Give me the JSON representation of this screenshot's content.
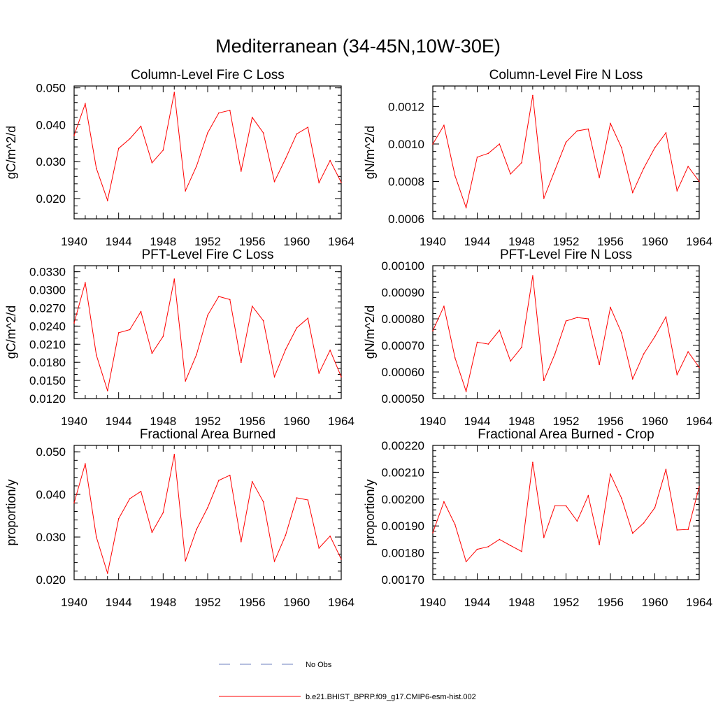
{
  "figure": {
    "title": "Mediterranean (34-45N,10W-30E)"
  },
  "legend": [
    {
      "label": "No Obs",
      "color": "#6d7fbf",
      "style": "dashed"
    },
    {
      "label": "b.e21.BHIST_BPRP.f09_g17.CMIP6-esm-hist.002",
      "color": "#ff0000",
      "style": "solid"
    }
  ],
  "chart_data": [
    {
      "type": "line",
      "title": "Column-Level Fire C Loss",
      "xlabel": "",
      "ylabel": "gC/m^2/d",
      "xlim": [
        1940,
        1964
      ],
      "ylim": [
        0.0145,
        0.0505
      ],
      "x_ticks": [
        1940,
        1944,
        1948,
        1952,
        1956,
        1960,
        1964
      ],
      "y_ticks": [
        0.02,
        0.03,
        0.04,
        0.05
      ],
      "y_tick_labels": [
        "0.020",
        "0.030",
        "0.040",
        "0.050"
      ],
      "y_minor_step": 0.002,
      "x": [
        1940,
        1941,
        1942,
        1943,
        1944,
        1945,
        1946,
        1947,
        1948,
        1949,
        1950,
        1951,
        1952,
        1953,
        1954,
        1955,
        1956,
        1957,
        1958,
        1959,
        1960,
        1961,
        1962,
        1963,
        1964
      ],
      "series": [
        {
          "name": "b.e21.BHIST_BPRP.f09_g17.CMIP6-esm-hist.002",
          "color": "#ff0000",
          "values": [
            0.0371,
            0.0457,
            0.0282,
            0.0195,
            0.0336,
            0.0362,
            0.0396,
            0.0297,
            0.0331,
            0.0488,
            0.0221,
            0.0288,
            0.0378,
            0.0432,
            0.0439,
            0.0274,
            0.042,
            0.0378,
            0.0246,
            0.0308,
            0.0375,
            0.0393,
            0.0243,
            0.0303,
            0.0244
          ]
        }
      ]
    },
    {
      "type": "line",
      "title": "Column-Level Fire N Loss",
      "xlabel": "",
      "ylabel": "gN/m^2/d",
      "xlim": [
        1940,
        1964
      ],
      "ylim": [
        0.0006,
        0.00131
      ],
      "x_ticks": [
        1940,
        1944,
        1948,
        1952,
        1956,
        1960,
        1964
      ],
      "y_ticks": [
        0.0006,
        0.0008,
        0.001,
        0.0012
      ],
      "y_tick_labels": [
        "0.0006",
        "0.0008",
        "0.0010",
        "0.0012"
      ],
      "y_minor_step": 4e-05,
      "x": [
        1940,
        1941,
        1942,
        1943,
        1944,
        1945,
        1946,
        1947,
        1948,
        1949,
        1950,
        1951,
        1952,
        1953,
        1954,
        1955,
        1956,
        1957,
        1958,
        1959,
        1960,
        1961,
        1962,
        1963,
        1964
      ],
      "series": [
        {
          "name": "b.e21.BHIST_BPRP.f09_g17.CMIP6-esm-hist.002",
          "color": "#ff0000",
          "values": [
            0.001,
            0.0011,
            0.00083,
            0.00066,
            0.00093,
            0.00095,
            0.001,
            0.00084,
            0.0009,
            0.00126,
            0.00071,
            0.00086,
            0.00101,
            0.00107,
            0.00108,
            0.00082,
            0.00111,
            0.00098,
            0.00074,
            0.00087,
            0.00098,
            0.00106,
            0.00075,
            0.00088,
            0.0008
          ]
        }
      ]
    },
    {
      "type": "line",
      "title": "PFT-Level Fire C Loss",
      "xlabel": "",
      "ylabel": "gC/m^2/d",
      "xlim": [
        1940,
        1964
      ],
      "ylim": [
        0.012,
        0.034
      ],
      "x_ticks": [
        1940,
        1944,
        1948,
        1952,
        1956,
        1960,
        1964
      ],
      "y_ticks": [
        0.012,
        0.015,
        0.018,
        0.021,
        0.024,
        0.027,
        0.03,
        0.033
      ],
      "y_tick_labels": [
        "0.0120",
        "0.0150",
        "0.0180",
        "0.0210",
        "0.0240",
        "0.0270",
        "0.0300",
        "0.0330"
      ],
      "y_minor_step": 0.001,
      "x": [
        1940,
        1941,
        1942,
        1943,
        1944,
        1945,
        1946,
        1947,
        1948,
        1949,
        1950,
        1951,
        1952,
        1953,
        1954,
        1955,
        1956,
        1957,
        1958,
        1959,
        1960,
        1961,
        1962,
        1963,
        1964
      ],
      "series": [
        {
          "name": "b.e21.BHIST_BPRP.f09_g17.CMIP6-esm-hist.002",
          "color": "#ff0000",
          "values": [
            0.0245,
            0.0312,
            0.0192,
            0.0133,
            0.0229,
            0.0234,
            0.0264,
            0.0195,
            0.0223,
            0.0318,
            0.0149,
            0.0193,
            0.0258,
            0.0289,
            0.0284,
            0.018,
            0.0273,
            0.0249,
            0.0156,
            0.0201,
            0.0237,
            0.0253,
            0.0162,
            0.02,
            0.0156
          ]
        }
      ]
    },
    {
      "type": "line",
      "title": "PFT-Level Fire N Loss",
      "xlabel": "",
      "ylabel": "gN/m^2/d",
      "xlim": [
        1940,
        1964
      ],
      "ylim": [
        0.0005,
        0.001
      ],
      "x_ticks": [
        1940,
        1944,
        1948,
        1952,
        1956,
        1960,
        1964
      ],
      "y_ticks": [
        0.0005,
        0.0006,
        0.0007,
        0.0008,
        0.0009,
        0.001
      ],
      "y_tick_labels": [
        "0.00050",
        "0.00060",
        "0.00070",
        "0.00080",
        "0.00090",
        "0.00100"
      ],
      "y_minor_step": 2e-05,
      "x": [
        1940,
        1941,
        1942,
        1943,
        1944,
        1945,
        1946,
        1947,
        1948,
        1949,
        1950,
        1951,
        1952,
        1953,
        1954,
        1955,
        1956,
        1957,
        1958,
        1959,
        1960,
        1961,
        1962,
        1963,
        1964
      ],
      "series": [
        {
          "name": "b.e21.BHIST_BPRP.f09_g17.CMIP6-esm-hist.002",
          "color": "#ff0000",
          "values": [
            0.000755,
            0.000847,
            0.000653,
            0.000527,
            0.000712,
            0.000705,
            0.000757,
            0.000641,
            0.000693,
            0.000962,
            0.000568,
            0.000668,
            0.000792,
            0.000805,
            0.0008,
            0.000628,
            0.000843,
            0.000747,
            0.000574,
            0.000668,
            0.000733,
            0.000807,
            0.00059,
            0.000676,
            0.000617
          ]
        }
      ]
    },
    {
      "type": "line",
      "title": "Fractional Area Burned",
      "xlabel": "",
      "ylabel": "proportion/y",
      "xlim": [
        1940,
        1964
      ],
      "ylim": [
        0.02,
        0.0515
      ],
      "x_ticks": [
        1940,
        1944,
        1948,
        1952,
        1956,
        1960,
        1964
      ],
      "y_ticks": [
        0.02,
        0.03,
        0.04,
        0.05
      ],
      "y_tick_labels": [
        "0.020",
        "0.030",
        "0.040",
        "0.050"
      ],
      "y_minor_step": 0.002,
      "x": [
        1940,
        1941,
        1942,
        1943,
        1944,
        1945,
        1946,
        1947,
        1948,
        1949,
        1950,
        1951,
        1952,
        1953,
        1954,
        1955,
        1956,
        1957,
        1958,
        1959,
        1960,
        1961,
        1962,
        1963,
        1964
      ],
      "series": [
        {
          "name": "b.e21.BHIST_BPRP.f09_g17.CMIP6-esm-hist.002",
          "color": "#ff0000",
          "values": [
            0.038,
            0.0472,
            0.03,
            0.0215,
            0.0343,
            0.039,
            0.0407,
            0.0311,
            0.0357,
            0.0494,
            0.0244,
            0.0318,
            0.0369,
            0.0433,
            0.0445,
            0.0289,
            0.043,
            0.0383,
            0.0243,
            0.0304,
            0.0392,
            0.0387,
            0.0274,
            0.0302,
            0.0248
          ]
        }
      ]
    },
    {
      "type": "line",
      "title": "Fractional Area Burned - Crop",
      "xlabel": "",
      "ylabel": "proportion/y",
      "xlim": [
        1940,
        1964
      ],
      "ylim": [
        0.0017,
        0.0022
      ],
      "x_ticks": [
        1940,
        1944,
        1948,
        1952,
        1956,
        1960,
        1964
      ],
      "y_ticks": [
        0.0017,
        0.0018,
        0.0019,
        0.002,
        0.0021,
        0.0022
      ],
      "y_tick_labels": [
        "0.00170",
        "0.00180",
        "0.00190",
        "0.00200",
        "0.00210",
        "0.00220"
      ],
      "y_minor_step": 2e-05,
      "x": [
        1940,
        1941,
        1942,
        1943,
        1944,
        1945,
        1946,
        1947,
        1948,
        1949,
        1950,
        1951,
        1952,
        1953,
        1954,
        1955,
        1956,
        1957,
        1958,
        1959,
        1960,
        1961,
        1962,
        1963,
        1964
      ],
      "series": [
        {
          "name": "b.e21.BHIST_BPRP.f09_g17.CMIP6-esm-hist.002",
          "color": "#ff0000",
          "values": [
            0.001875,
            0.00199,
            0.001905,
            0.001767,
            0.001813,
            0.001823,
            0.00185,
            0.001827,
            0.001805,
            0.002137,
            0.001857,
            0.001975,
            0.001975,
            0.001918,
            0.002013,
            0.001831,
            0.002093,
            0.002003,
            0.001873,
            0.001911,
            0.001968,
            0.002111,
            0.001885,
            0.001887,
            0.002046
          ]
        }
      ]
    }
  ]
}
